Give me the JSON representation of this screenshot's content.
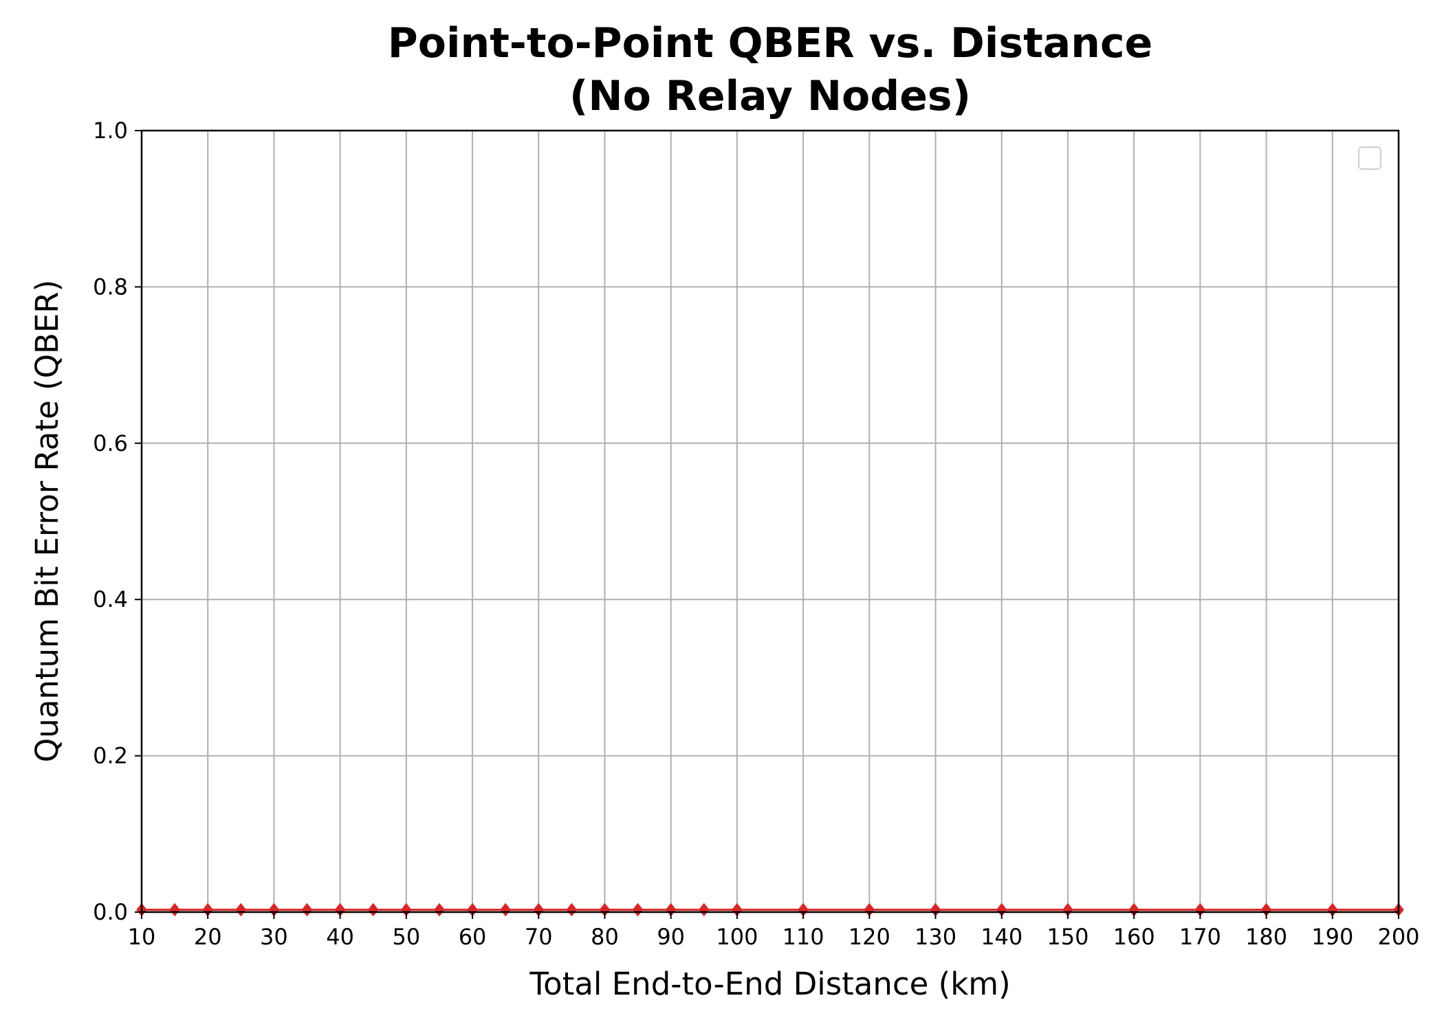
{
  "chart_data": {
    "type": "line",
    "title_lines": [
      "Point-to-Point QBER vs. Distance",
      "(No Relay Nodes)"
    ],
    "xlabel": "Total End-to-End Distance (km)",
    "ylabel": "Quantum Bit Error Rate (QBER)",
    "xlim": [
      10,
      200
    ],
    "ylim": [
      0,
      1.0
    ],
    "xticks": [
      10,
      20,
      30,
      40,
      50,
      60,
      70,
      80,
      90,
      100,
      110,
      120,
      130,
      140,
      150,
      160,
      170,
      180,
      190,
      200
    ],
    "yticks": [
      0.0,
      0.2,
      0.4,
      0.6,
      0.8,
      1.0
    ],
    "ytick_labels": [
      "0.0",
      "0.2",
      "0.4",
      "0.6",
      "0.8",
      "1.0"
    ],
    "grid": true,
    "legend": "top-right",
    "series": [
      {
        "color": "#d62728",
        "marker": "diamond",
        "x": [
          10,
          15,
          20,
          25,
          30,
          35,
          40,
          45,
          50,
          55,
          60,
          65,
          70,
          75,
          80,
          85,
          90,
          95,
          100,
          110,
          120,
          130,
          140,
          150,
          160,
          170,
          180,
          190,
          200
        ],
        "y": [
          0.003,
          0.003,
          0.003,
          0.003,
          0.003,
          0.003,
          0.003,
          0.003,
          0.003,
          0.003,
          0.003,
          0.003,
          0.003,
          0.003,
          0.003,
          0.003,
          0.003,
          0.003,
          0.003,
          0.003,
          0.003,
          0.003,
          0.003,
          0.003,
          0.003,
          0.003,
          0.003,
          0.003,
          0.003
        ]
      }
    ]
  }
}
